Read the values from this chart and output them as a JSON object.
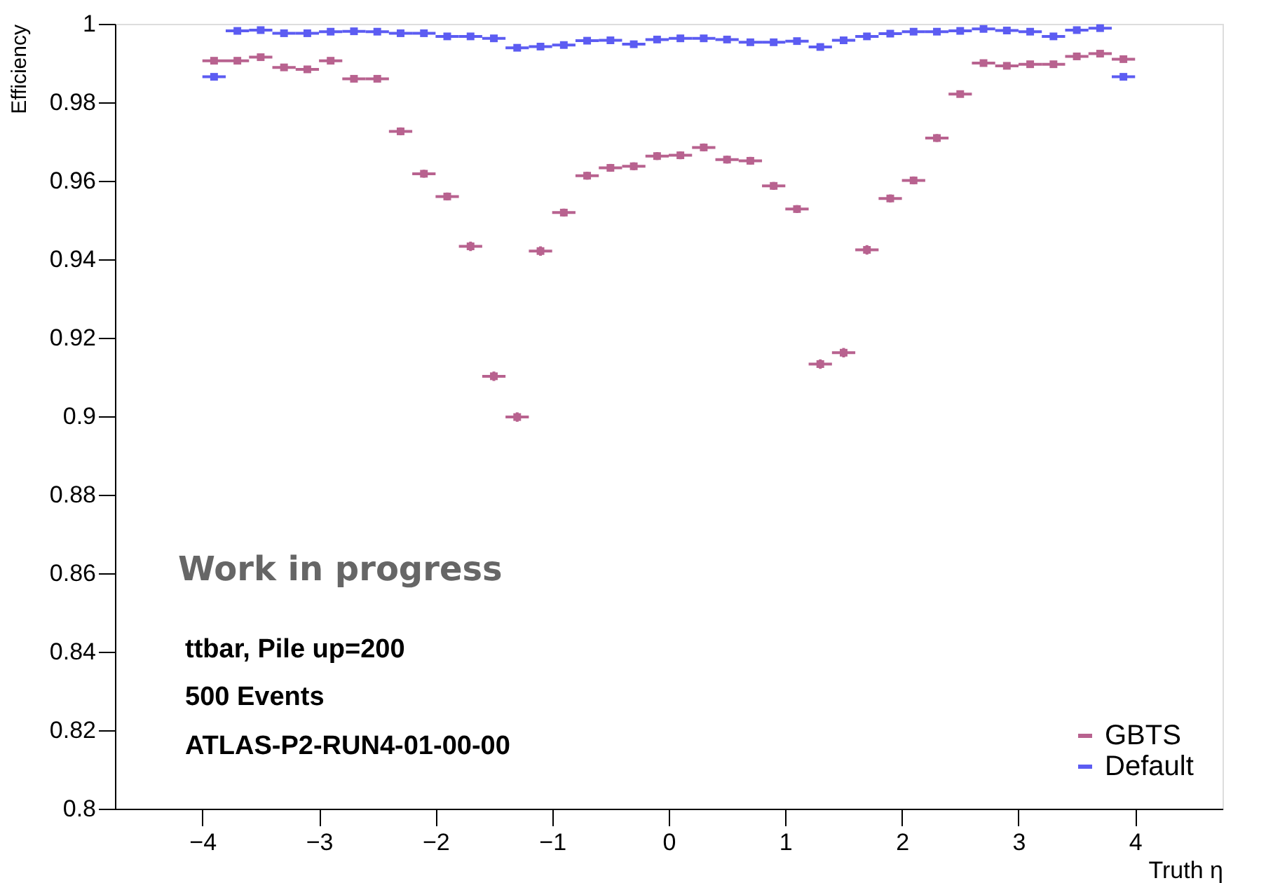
{
  "chart_data": {
    "type": "scatter",
    "xlabel": "Truth η",
    "ylabel": "Efficiency",
    "x": [
      -3.9,
      -3.7,
      -3.5,
      -3.3,
      -3.1,
      -2.9,
      -2.7,
      -2.5,
      -2.3,
      -2.1,
      -1.9,
      -1.7,
      -1.5,
      -1.3,
      -1.1,
      -0.9,
      -0.7,
      -0.5,
      -0.3,
      -0.1,
      0.1,
      0.3,
      0.5,
      0.7,
      0.9,
      1.1,
      1.3,
      1.5,
      1.7,
      1.9,
      2.1,
      2.3,
      2.5,
      2.7,
      2.9,
      3.1,
      3.3,
      3.5,
      3.7,
      3.9
    ],
    "series": [
      {
        "name": "GBTS",
        "color": "#b8628f",
        "values": [
          0.9906,
          0.9906,
          0.9915,
          0.9889,
          0.9884,
          0.9906,
          0.986,
          0.986,
          0.9726,
          0.9618,
          0.956,
          0.9433,
          0.9102,
          0.8998,
          0.9421,
          0.9519,
          0.9613,
          0.9633,
          0.9637,
          0.9663,
          0.9665,
          0.9685,
          0.9654,
          0.9651,
          0.9587,
          0.9528,
          0.9133,
          0.9162,
          0.9424,
          0.9555,
          0.9601,
          0.9709,
          0.9821,
          0.99,
          0.9893,
          0.9897,
          0.9897,
          0.9917,
          0.9924,
          0.991
        ],
        "errors": [
          0.0008,
          0.0008,
          0.0008,
          0.0008,
          0.0008,
          0.0008,
          0.0008,
          0.0008,
          0.001,
          0.001,
          0.001,
          0.0012,
          0.0012,
          0.0012,
          0.0012,
          0.001,
          0.001,
          0.001,
          0.001,
          0.001,
          0.001,
          0.001,
          0.001,
          0.001,
          0.001,
          0.001,
          0.0012,
          0.0012,
          0.0012,
          0.001,
          0.001,
          0.001,
          0.0008,
          0.0008,
          0.0008,
          0.0008,
          0.0008,
          0.0008,
          0.0008,
          0.0008
        ],
        "xerrors": [
          0.1,
          0.1,
          0.1,
          0.1,
          0.1,
          0.1,
          0.1,
          0.1,
          0.1,
          0.1,
          0.1,
          0.1,
          0.1,
          0.1,
          0.1,
          0.1,
          0.1,
          0.1,
          0.1,
          0.1,
          0.1,
          0.1,
          0.1,
          0.1,
          0.1,
          0.1,
          0.1,
          0.1,
          0.1,
          0.1,
          0.1,
          0.1,
          0.1,
          0.1,
          0.1,
          0.1,
          0.1,
          0.1,
          0.1,
          0.1
        ]
      },
      {
        "name": "Default",
        "color": "#5c5cf2",
        "values": [
          0.9865,
          0.9982,
          0.9984,
          0.9976,
          0.9976,
          0.998,
          0.9981,
          0.998,
          0.9976,
          0.9976,
          0.9968,
          0.9968,
          0.9963,
          0.9939,
          0.9942,
          0.9946,
          0.9957,
          0.9958,
          0.9948,
          0.996,
          0.9963,
          0.9963,
          0.996,
          0.9953,
          0.9953,
          0.9956,
          0.9941,
          0.9958,
          0.9968,
          0.9975,
          0.998,
          0.998,
          0.9982,
          0.9987,
          0.9983,
          0.998,
          0.9968,
          0.9984,
          0.9989,
          0.9865
        ],
        "xerrors": [
          0.1,
          0.1,
          0.1,
          0.1,
          0.1,
          0.1,
          0.1,
          0.1,
          0.1,
          0.1,
          0.1,
          0.1,
          0.1,
          0.1,
          0.1,
          0.1,
          0.1,
          0.1,
          0.1,
          0.1,
          0.1,
          0.1,
          0.1,
          0.1,
          0.1,
          0.1,
          0.1,
          0.1,
          0.1,
          0.1,
          0.1,
          0.1,
          0.1,
          0.1,
          0.1,
          0.1,
          0.1,
          0.1,
          0.1,
          0.1
        ]
      }
    ],
    "xlim": [
      -4.75,
      4.75
    ],
    "xticks": [
      -4,
      -3,
      -2,
      -1,
      0,
      1,
      2,
      3,
      4
    ],
    "ylim": [
      0.8,
      1.0
    ],
    "yticks": [
      0.8,
      0.82,
      0.84,
      0.86,
      0.88,
      0.9,
      0.92,
      0.94,
      0.96,
      0.98,
      1
    ],
    "annotations": [
      "Work in progress",
      "ttbar, Pile up=200",
      "500 Events",
      "ATLAS-P2-RUN4-01-00-00"
    ],
    "marker": "square",
    "legend": "bottom right",
    "grid": false
  }
}
